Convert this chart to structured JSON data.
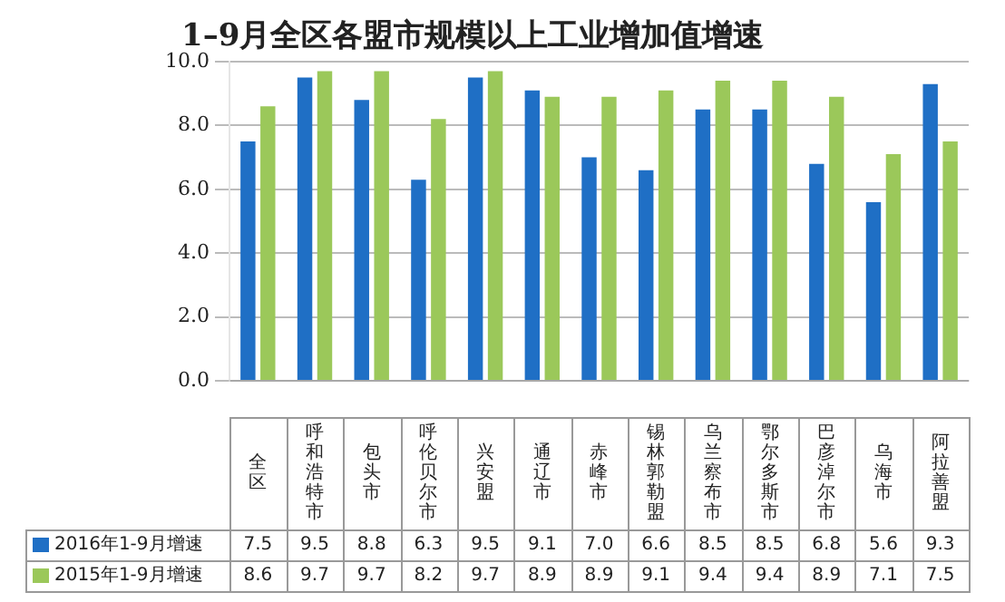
{
  "chart_data": {
    "type": "bar",
    "title": "1–9月全区各盟市规模以上工业增加值增速",
    "categories": [
      "全区",
      "呼和浩特市",
      "包头市",
      "呼伦贝尔市",
      "兴安盟",
      "通辽市",
      "赤峰市",
      "锡林郭勒盟",
      "乌兰察布市",
      "鄂尔多斯市",
      "巴彦淖尔市",
      "乌海市",
      "阿拉善盟"
    ],
    "series": [
      {
        "name": "2016年1-9月增速",
        "color": "#1f6fc5",
        "values": [
          7.5,
          9.5,
          8.8,
          6.3,
          9.5,
          9.1,
          7.0,
          6.6,
          8.5,
          8.5,
          6.8,
          5.6,
          9.3
        ],
        "value_labels": [
          "7.5",
          "9.5",
          "8.8",
          "6.3",
          "9.5",
          "9.1",
          "7.0",
          "6.6",
          "8.5",
          "8.5",
          "6.8",
          "5.6",
          "9.3"
        ]
      },
      {
        "name": "2015年1-9月增速",
        "color": "#9bc85a",
        "values": [
          8.6,
          9.7,
          9.7,
          8.2,
          9.7,
          8.9,
          8.9,
          9.1,
          9.4,
          9.4,
          8.9,
          7.1,
          7.5
        ],
        "value_labels": [
          "8.6",
          "9.7",
          "9.7",
          "8.2",
          "9.7",
          "8.9",
          "8.9",
          "9.1",
          "9.4",
          "9.4",
          "8.9",
          "7.1",
          "7.5"
        ]
      }
    ],
    "ylim": [
      0,
      10
    ],
    "yticks": [
      {
        "value": 0,
        "label": "0.0"
      },
      {
        "value": 2,
        "label": "2.0"
      },
      {
        "value": 4,
        "label": "4.0"
      },
      {
        "value": 6,
        "label": "6.0"
      },
      {
        "value": 8,
        "label": "8.0"
      },
      {
        "value": 10,
        "label": "10.0"
      }
    ],
    "grid": "y",
    "legend": "bottom",
    "tick_labels": "y"
  }
}
